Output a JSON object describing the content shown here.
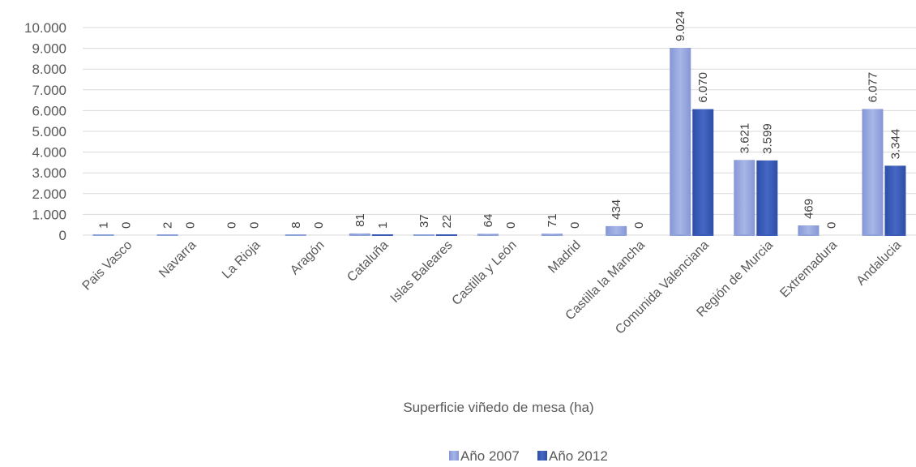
{
  "chart_data": {
    "type": "bar",
    "title": "",
    "xlabel": "Superficie viñedo de mesa (ha)",
    "ylabel": "",
    "ylim": [
      0,
      10000
    ],
    "y_ticks": [
      0,
      1000,
      2000,
      3000,
      4000,
      5000,
      6000,
      7000,
      8000,
      9000,
      10000
    ],
    "y_tick_labels": [
      "0",
      "1.000",
      "2.000",
      "3.000",
      "4.000",
      "5.000",
      "6.000",
      "7.000",
      "8.000",
      "9.000",
      "10.000"
    ],
    "grid": true,
    "legend_position": "bottom",
    "categories": [
      "Pais Vasco",
      "Navarra",
      "La Rioja",
      "Aragón",
      "Cataluña",
      "Islas Baleares",
      "Castilla y León",
      "Madrid",
      "Castilla la Mancha",
      "Comunida Valenciana",
      "Región de Murcia",
      "Extremadura",
      "Andalucia"
    ],
    "series": [
      {
        "name": "Año 2007",
        "color": "#8FA3DB",
        "values": [
          1,
          2,
          0,
          8,
          81,
          37,
          64,
          71,
          434,
          9024,
          3621,
          469,
          6077
        ],
        "labels": [
          "1",
          "2",
          "0",
          "8",
          "81",
          "37",
          "64",
          "71",
          "434",
          "9.024",
          "3.621",
          "469",
          "6.077"
        ]
      },
      {
        "name": "Año 2012",
        "color": "#3A5CB8",
        "values": [
          0,
          0,
          0,
          0,
          1,
          22,
          0,
          0,
          0,
          6070,
          3599,
          0,
          3344
        ],
        "labels": [
          "0",
          "0",
          "0",
          "0",
          "1",
          "22",
          "0",
          "0",
          "0",
          "6.070",
          "3.599",
          "0",
          "3.344"
        ]
      }
    ]
  }
}
